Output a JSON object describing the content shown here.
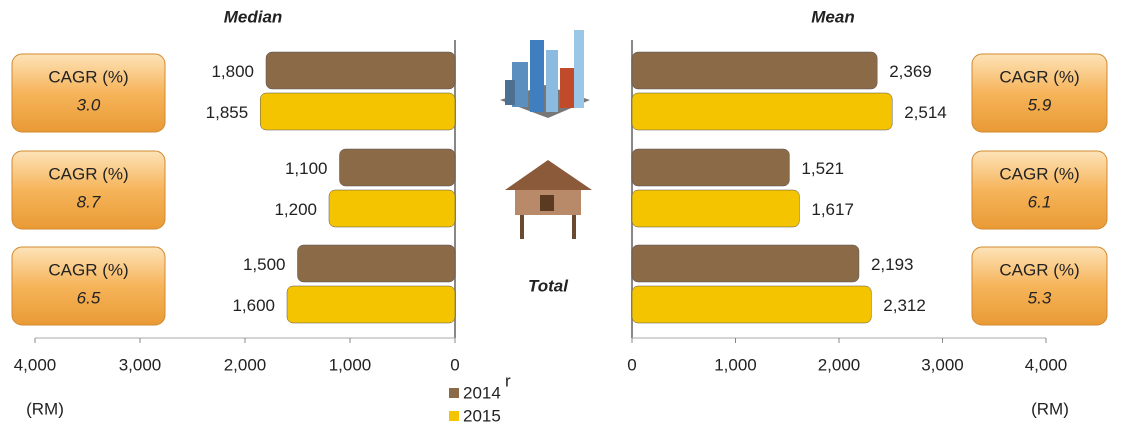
{
  "chart_data": [
    {
      "type": "bar",
      "orientation": "horizontal",
      "title": "Median",
      "xlabel": "(RM)",
      "categories": [
        null,
        null,
        "Total"
      ],
      "series": [
        {
          "name": "2014",
          "name_note": "r",
          "color": "#8b6a48",
          "values": [
            1800,
            1100,
            1500
          ],
          "value_labels": [
            "1,800",
            "1,100",
            "1,500"
          ]
        },
        {
          "name": "2015",
          "color": "#f5c400",
          "values": [
            1855,
            1200,
            1600
          ],
          "value_labels": [
            "1,855",
            "1,200",
            "1,600"
          ]
        }
      ],
      "xlim": [
        4000,
        0
      ],
      "xticks": [
        {
          "value": 4000,
          "label": "4,000"
        },
        {
          "value": 3000,
          "label": "3,000"
        },
        {
          "value": 2000,
          "label": "2,000"
        },
        {
          "value": 1000,
          "label": "1,000"
        },
        0
      ],
      "cagr": {
        "label": "CAGR (%)",
        "values": [
          3.0,
          8.7,
          6.5
        ],
        "value_labels": [
          "3.0",
          "8.7",
          "6.5"
        ]
      }
    },
    {
      "type": "bar",
      "orientation": "horizontal",
      "title": "Mean",
      "xlabel": "(RM)",
      "series": [
        {
          "color": "#8b6a48",
          "values": [
            2369,
            1521,
            2193
          ],
          "value_labels": [
            "2,369",
            "1,521",
            "2,193"
          ]
        },
        {
          "color": "#f5c400",
          "values": [
            2514,
            1617,
            2312
          ],
          "value_labels": [
            "2,514",
            "1,617",
            "2,312"
          ]
        }
      ],
      "xlim": [
        0,
        4000
      ],
      "xticks": [
        0,
        {
          "value": 1000,
          "label": "1,000"
        },
        {
          "value": 2000,
          "label": "2,000"
        },
        {
          "value": 3000,
          "label": "3,000"
        },
        {
          "value": 4000,
          "label": "4,000"
        }
      ],
      "cagr": {
        "label": "CAGR (%)",
        "values": [
          5.9,
          6.1,
          5.3
        ],
        "value_labels": [
          "5.9",
          "6.1",
          "5.3"
        ]
      }
    }
  ]
}
